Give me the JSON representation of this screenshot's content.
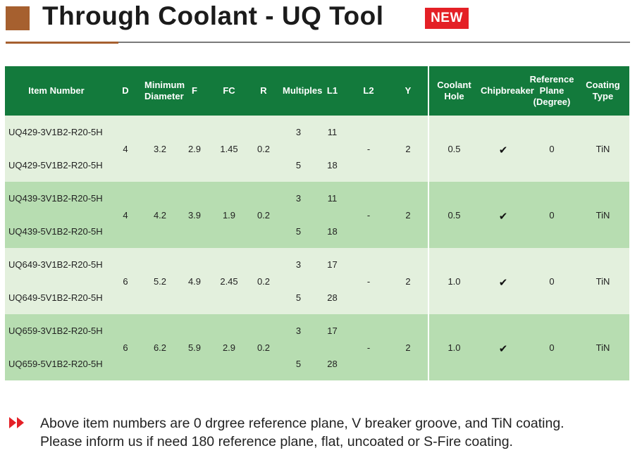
{
  "header": {
    "title": "Through Coolant - UQ Tool",
    "badge": "NEW",
    "colors": {
      "accent": "#a6602f",
      "badge": "#e42026",
      "table_header": "#137a3c",
      "row_light": "#e3f0dd",
      "row_dark": "#b7ddb1"
    }
  },
  "table": {
    "columns": {
      "item": "Item Number",
      "d": "D",
      "min_dia_1": "Minimum",
      "min_dia_2": "Diameter",
      "f": "F",
      "fc": "FC",
      "r": "R",
      "multiples": "Multiples",
      "l1": "L1",
      "l2": "L2",
      "y": "Y",
      "coolant_1": "Coolant",
      "coolant_2": "Hole",
      "chipbreaker": "Chipbreaker",
      "refplane_1": "Reference",
      "refplane_2": "Plane",
      "refplane_3": "(Degree)",
      "coating_1": "Coating",
      "coating_2": "Type"
    },
    "groups": [
      {
        "items": [
          "UQ429-3V1B2-R20-5H",
          "UQ429-5V1B2-R20-5H"
        ],
        "multiples": [
          "3",
          "5"
        ],
        "l1": [
          "11",
          "18"
        ],
        "d": "4",
        "min_dia": "3.2",
        "f": "2.9",
        "fc": "1.45",
        "r": "0.2",
        "l2": "-",
        "y": "2",
        "coolant": "0.5",
        "chipbreaker": "✔",
        "refplane": "0",
        "coating": "TiN"
      },
      {
        "items": [
          "UQ439-3V1B2-R20-5H",
          "UQ439-5V1B2-R20-5H"
        ],
        "multiples": [
          "3",
          "5"
        ],
        "l1": [
          "11",
          "18"
        ],
        "d": "4",
        "min_dia": "4.2",
        "f": "3.9",
        "fc": "1.9",
        "r": "0.2",
        "l2": "-",
        "y": "2",
        "coolant": "0.5",
        "chipbreaker": "✔",
        "refplane": "0",
        "coating": "TiN"
      },
      {
        "items": [
          "UQ649-3V1B2-R20-5H",
          "UQ649-5V1B2-R20-5H"
        ],
        "multiples": [
          "3",
          "5"
        ],
        "l1": [
          "17",
          "28"
        ],
        "d": "6",
        "min_dia": "5.2",
        "f": "4.9",
        "fc": "2.45",
        "r": "0.2",
        "l2": "-",
        "y": "2",
        "coolant": "1.0",
        "chipbreaker": "✔",
        "refplane": "0",
        "coating": "TiN"
      },
      {
        "items": [
          "UQ659-3V1B2-R20-5H",
          "UQ659-5V1B2-R20-5H"
        ],
        "multiples": [
          "3",
          "5"
        ],
        "l1": [
          "17",
          "28"
        ],
        "d": "6",
        "min_dia": "6.2",
        "f": "5.9",
        "fc": "2.9",
        "r": "0.2",
        "l2": "-",
        "y": "2",
        "coolant": "1.0",
        "chipbreaker": "✔",
        "refplane": "0",
        "coating": "TiN"
      }
    ]
  },
  "footnote": {
    "arrows_icon": "double-arrow-icon",
    "line1": "Above item numbers are 0 drgree reference plane, V breaker groove, and TiN coating.",
    "line2": "Please inform us if need 180 reference plane, flat, uncoated or S-Fire coating."
  }
}
